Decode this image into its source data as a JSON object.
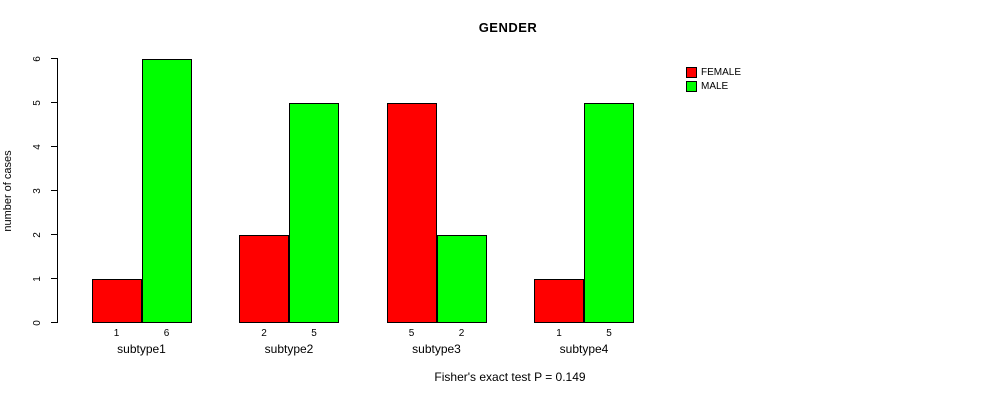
{
  "chart_data": {
    "type": "bar",
    "title": "GENDER",
    "xlabel": "",
    "ylabel": "number of cases",
    "categories": [
      "subtype1",
      "subtype2",
      "subtype3",
      "subtype4"
    ],
    "series": [
      {
        "name": "FEMALE",
        "color": "#ff0000",
        "values": [
          1,
          2,
          5,
          1
        ]
      },
      {
        "name": "MALE",
        "color": "#00ff00",
        "values": [
          6,
          5,
          2,
          5
        ]
      }
    ],
    "ylim": [
      0,
      6
    ],
    "yticks": [
      0,
      1,
      2,
      3,
      4,
      5,
      6
    ],
    "value_labels_below_bars": true,
    "grid": false,
    "legend_position": "top-right",
    "annotation": "Fisher's exact test P = 0.149",
    "axis_color": "#000000",
    "background_color": "#ffffff"
  }
}
